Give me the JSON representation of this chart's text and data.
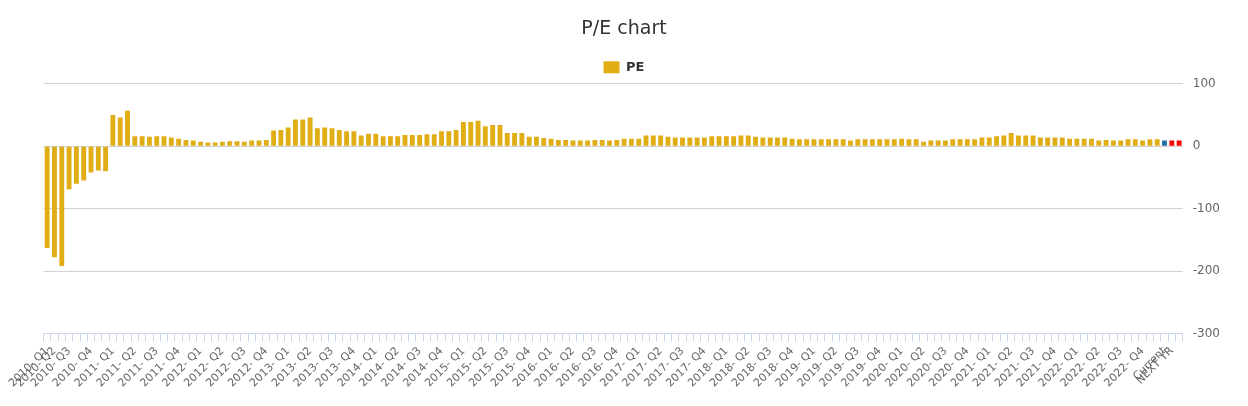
{
  "chart_data": {
    "type": "bar",
    "title": "P/E chart",
    "categories": [
      "2010- Q1",
      "2010- Q2",
      null,
      "2010- Q3",
      null,
      null,
      "2010- Q4",
      null,
      null,
      "2011- Q1",
      null,
      null,
      "2011- Q2",
      null,
      null,
      "2011- Q3",
      null,
      null,
      "2011- Q4",
      null,
      null,
      "2012- Q1",
      null,
      null,
      "2012- Q2",
      null,
      null,
      "2012- Q3",
      null,
      null,
      "2012- Q4",
      null,
      null,
      "2013- Q1",
      null,
      null,
      "2013- Q2",
      null,
      null,
      "2013- Q3",
      null,
      null,
      "2013- Q4",
      null,
      null,
      "2014- Q1",
      null,
      null,
      "2014- Q2",
      null,
      null,
      "2014- Q3",
      null,
      null,
      "2014- Q4",
      null,
      null,
      "2015- Q1",
      null,
      null,
      "2015- Q2",
      null,
      null,
      "2015- Q3",
      null,
      null,
      "2015- Q4",
      null,
      null,
      "2016- Q1",
      null,
      null,
      "2016- Q2",
      null,
      null,
      "2016- Q3",
      null,
      null,
      "2016- Q4",
      null,
      null,
      "2017- Q1",
      null,
      null,
      "2017- Q2",
      null,
      null,
      "2017- Q3",
      null,
      null,
      "2017- Q4",
      null,
      null,
      "2018- Q1",
      null,
      null,
      "2018- Q2",
      null,
      null,
      "2018- Q3",
      null,
      null,
      "2018- Q4",
      null,
      null,
      "2019- Q1",
      null,
      null,
      "2019- Q2",
      null,
      null,
      "2019- Q3",
      null,
      null,
      "2019- Q4",
      null,
      null,
      "2020- Q1",
      null,
      null,
      "2020- Q2",
      null,
      null,
      "2020- Q3",
      null,
      null,
      "2020- Q4",
      null,
      null,
      "2021- Q1",
      null,
      null,
      "2021- Q2",
      null,
      null,
      "2021- Q3",
      null,
      null,
      "2021- Q4",
      null,
      null,
      "2022- Q1",
      null,
      null,
      "2022- Q2",
      null,
      null,
      "2022- Q3",
      null,
      null,
      "2022- Q4",
      null,
      null,
      "Current",
      "NEXT YR",
      null
    ],
    "series": [
      {
        "name": "PE",
        "color": "#e1ad15",
        "values": [
          -163,
          -178,
          -192,
          -69,
          -60,
          -55,
          -42,
          -39,
          -40,
          50,
          46,
          57,
          16,
          16,
          15,
          16,
          16,
          14,
          12,
          10,
          9,
          7,
          6,
          6,
          7,
          8,
          8,
          7,
          9,
          9,
          10,
          25,
          26,
          30,
          43,
          43,
          46,
          29,
          30,
          29,
          26,
          24,
          24,
          17,
          20,
          20,
          16,
          16,
          16,
          18,
          18,
          18,
          19,
          19,
          24,
          24,
          26,
          39,
          39,
          41,
          32,
          34,
          34,
          21,
          21,
          21,
          15,
          15,
          13,
          12,
          10,
          10,
          9,
          9,
          9,
          10,
          10,
          9,
          10,
          12,
          12,
          12,
          17,
          17,
          17,
          15,
          14,
          14,
          14,
          14,
          14,
          16,
          16,
          16,
          16,
          17,
          17,
          15,
          14,
          14,
          14,
          14,
          12,
          11,
          11,
          11,
          11,
          11,
          11,
          11,
          9,
          11,
          11,
          11,
          11,
          11,
          11,
          12,
          11,
          11,
          7,
          9,
          9,
          9,
          11,
          11,
          11,
          11,
          14,
          14,
          16,
          17,
          21,
          17,
          17,
          17,
          14,
          14,
          14,
          14,
          12,
          12,
          12,
          12,
          9,
          10,
          9,
          9,
          11,
          11,
          9,
          11,
          11,
          9,
          9,
          9
        ],
        "colors": [
          "#e1ad15",
          "#e1ad15",
          "#e1ad15",
          "#e1ad15",
          "#e1ad15",
          "#e1ad15",
          "#e1ad15",
          "#e1ad15",
          "#e1ad15",
          "#e1ad15",
          "#e1ad15",
          "#e1ad15",
          "#e1ad15",
          "#e1ad15",
          "#e1ad15",
          "#e1ad15",
          "#e1ad15",
          "#e1ad15",
          "#e1ad15",
          "#e1ad15",
          "#e1ad15",
          "#e1ad15",
          "#e1ad15",
          "#e1ad15",
          "#e1ad15",
          "#e1ad15",
          "#e1ad15",
          "#e1ad15",
          "#e1ad15",
          "#e1ad15",
          "#e1ad15",
          "#e1ad15",
          "#e1ad15",
          "#e1ad15",
          "#e1ad15",
          "#e1ad15",
          "#e1ad15",
          "#e1ad15",
          "#e1ad15",
          "#e1ad15",
          "#e1ad15",
          "#e1ad15",
          "#e1ad15",
          "#e1ad15",
          "#e1ad15",
          "#e1ad15",
          "#e1ad15",
          "#e1ad15",
          "#e1ad15",
          "#e1ad15",
          "#e1ad15",
          "#e1ad15",
          "#e1ad15",
          "#e1ad15",
          "#e1ad15",
          "#e1ad15",
          "#e1ad15",
          "#e1ad15",
          "#e1ad15",
          "#e1ad15",
          "#e1ad15",
          "#e1ad15",
          "#e1ad15",
          "#e1ad15",
          "#e1ad15",
          "#e1ad15",
          "#e1ad15",
          "#e1ad15",
          "#e1ad15",
          "#e1ad15",
          "#e1ad15",
          "#e1ad15",
          "#e1ad15",
          "#e1ad15",
          "#e1ad15",
          "#e1ad15",
          "#e1ad15",
          "#e1ad15",
          "#e1ad15",
          "#e1ad15",
          "#e1ad15",
          "#e1ad15",
          "#e1ad15",
          "#e1ad15",
          "#e1ad15",
          "#e1ad15",
          "#e1ad15",
          "#e1ad15",
          "#e1ad15",
          "#e1ad15",
          "#e1ad15",
          "#e1ad15",
          "#e1ad15",
          "#e1ad15",
          "#e1ad15",
          "#e1ad15",
          "#e1ad15",
          "#e1ad15",
          "#e1ad15",
          "#e1ad15",
          "#e1ad15",
          "#e1ad15",
          "#e1ad15",
          "#e1ad15",
          "#e1ad15",
          "#e1ad15",
          "#e1ad15",
          "#e1ad15",
          "#e1ad15",
          "#e1ad15",
          "#e1ad15",
          "#e1ad15",
          "#e1ad15",
          "#e1ad15",
          "#e1ad15",
          "#e1ad15",
          "#e1ad15",
          "#e1ad15",
          "#e1ad15",
          "#e1ad15",
          "#e1ad15",
          "#e1ad15",
          "#e1ad15",
          "#e1ad15",
          "#e1ad15",
          "#e1ad15",
          "#e1ad15",
          "#e1ad15",
          "#e1ad15",
          "#e1ad15",
          "#e1ad15",
          "#e1ad15",
          "#e1ad15",
          "#e1ad15",
          "#e1ad15",
          "#e1ad15",
          "#e1ad15",
          "#e1ad15",
          "#e1ad15",
          "#e1ad15",
          "#e1ad15",
          "#e1ad15",
          "#e1ad15",
          "#e1ad15",
          "#e1ad15",
          "#e1ad15",
          "#e1ad15",
          "#e1ad15",
          "#e1ad15",
          "#e1ad15",
          "#e1ad15",
          "#e1ad15",
          "#e1ad15",
          "#1f6ea6",
          "#ff0000",
          "#ff0000"
        ]
      }
    ],
    "ylim": [
      -300,
      100
    ],
    "yticks": [
      -300,
      -200,
      -100,
      0,
      100
    ],
    "grid": "y",
    "legend": "top"
  }
}
